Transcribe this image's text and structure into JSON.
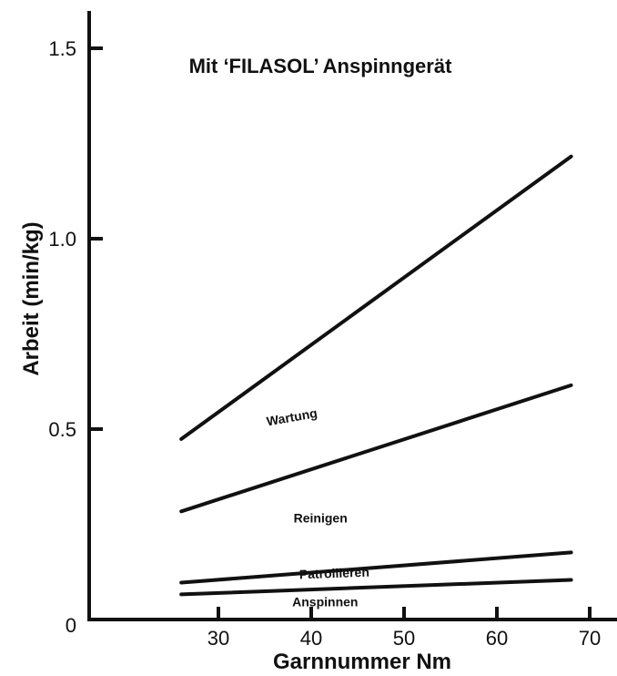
{
  "chart_data": {
    "type": "line",
    "title": "Mit ‘FILASOL’ Anspinngerät",
    "xlabel": "Garnnummer Nm",
    "ylabel": "Arbeit (min/kg)",
    "xlim": [
      20,
      73
    ],
    "ylim": [
      0,
      1.6
    ],
    "x_ticks": [
      30,
      40,
      50,
      60,
      70
    ],
    "x_tick_labels": [
      "30",
      "40",
      "50",
      "60",
      "70"
    ],
    "y_ticks": [
      0,
      0.5,
      1.0,
      1.5
    ],
    "y_tick_labels": [
      "0",
      "0.5",
      "1.0",
      "1.5"
    ],
    "grid": false,
    "series": [
      {
        "values": [
          {
            "x": 26,
            "y": 0.066
          },
          {
            "x": 68,
            "y": 0.104
          }
        ]
      },
      {
        "values": [
          {
            "x": 26,
            "y": 0.097
          },
          {
            "x": 68,
            "y": 0.176
          }
        ]
      },
      {
        "values": [
          {
            "x": 26,
            "y": 0.284
          },
          {
            "x": 68,
            "y": 0.615
          }
        ]
      },
      {
        "values": [
          {
            "x": 26,
            "y": 0.474
          },
          {
            "x": 68,
            "y": 1.216
          }
        ]
      }
    ],
    "band_labels": [
      {
        "text": "Anspinnen",
        "x": 41.5,
        "y": 0.035,
        "angle": 0
      },
      {
        "text": "Patrollieren",
        "x": 42.5,
        "y": 0.11,
        "angle": -2
      },
      {
        "text": "Reinigen",
        "x": 41,
        "y": 0.255,
        "angle": 0
      },
      {
        "text": "Wartung",
        "x": 38,
        "y": 0.52,
        "angle": -10
      }
    ],
    "colors": {
      "line": "#111111",
      "axis": "#111111",
      "background": "#ffffff"
    }
  }
}
